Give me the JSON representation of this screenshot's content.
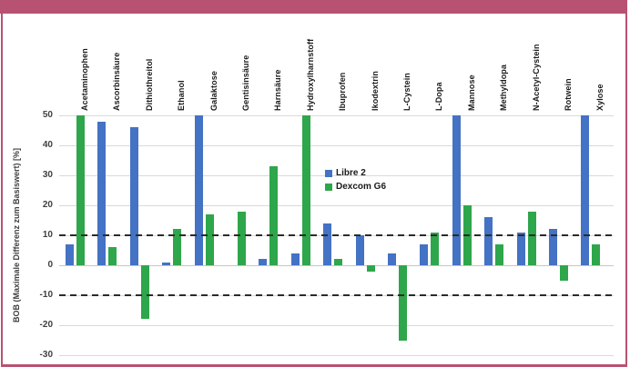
{
  "frame": {
    "band_color": "#B85272",
    "card_border_color": "#B85272",
    "background": "#FFFFFF",
    "gridline_color": "#D9D9D9",
    "reference_line_color": "#2B2B2B"
  },
  "chart_data": {
    "type": "bar",
    "title": "",
    "xlabel": "",
    "ylabel": "BOB (Maximale Differenz zum Basiswert) [%]",
    "ylim": [
      -30,
      50
    ],
    "yticks": [
      50,
      40,
      30,
      20,
      10,
      0,
      -10,
      -20,
      -30
    ],
    "reference_lines": [
      10,
      -10
    ],
    "grid": true,
    "legend_position": "inside-center-left",
    "categories": [
      "Acetaminophen",
      "Ascorbinsäure",
      "Dithiothreitol",
      "Ethanol",
      "Galaktose",
      "Gentisinsäure",
      "Harnsäure",
      "Hydroxylharnstoff",
      "Ibuprofen",
      "Ikodextrin",
      "L-Cystein",
      "L-Dopa",
      "Mannose",
      "Methyldopa",
      "N-Acetyl-Cystein",
      "Rotwein",
      "Xylose"
    ],
    "series": [
      {
        "name": "Libre 2",
        "color": "#4472C4",
        "values": [
          7,
          48,
          46,
          1,
          50,
          0,
          2,
          4,
          14,
          10,
          4,
          7,
          50,
          16,
          11,
          12,
          50
        ]
      },
      {
        "name": "Dexcom G6",
        "color": "#2EA64B",
        "values": [
          50,
          6,
          -18,
          12,
          17,
          18,
          33,
          50,
          2,
          -2,
          -25,
          11,
          20,
          7,
          18,
          -5,
          7
        ]
      }
    ]
  }
}
